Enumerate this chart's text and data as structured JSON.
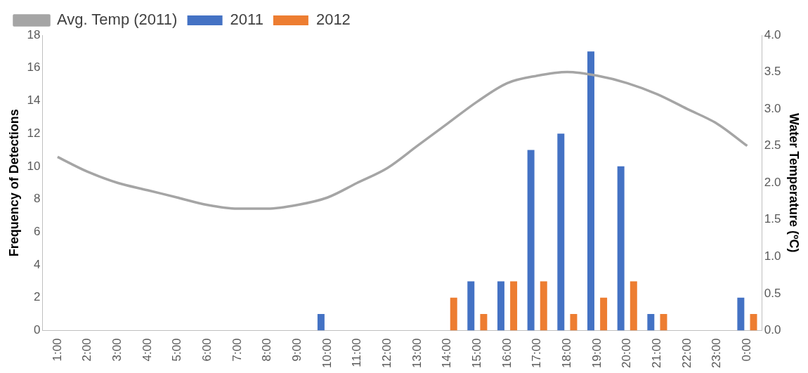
{
  "chart_data": {
    "type": "bar",
    "xlabel": null,
    "ylabel": "Frequency of Detections",
    "y2label": "Water Temperature (ºC)",
    "categories": [
      "1:00",
      "2:00",
      "3:00",
      "4:00",
      "5:00",
      "6:00",
      "7:00",
      "8:00",
      "9:00",
      "10:00",
      "11:00",
      "12:00",
      "13:00",
      "14:00",
      "15:00",
      "16:00",
      "17:00",
      "18:00",
      "19:00",
      "20:00",
      "21:00",
      "22:00",
      "23:00",
      "0:00"
    ],
    "series": [
      {
        "name": "2011",
        "color": "#4472c4",
        "values": [
          0,
          0,
          0,
          0,
          0,
          0,
          0,
          0,
          0,
          1,
          0,
          0,
          0,
          0,
          3,
          3,
          11,
          12,
          17,
          10,
          1,
          0,
          0,
          2
        ]
      },
      {
        "name": "2012",
        "color": "#ed7d31",
        "values": [
          0,
          0,
          0,
          0,
          0,
          0,
          0,
          0,
          0,
          0,
          0,
          0,
          0,
          2,
          1,
          3,
          3,
          1,
          2,
          3,
          1,
          0,
          0,
          1
        ]
      },
      {
        "name": "Avg. Temp (2011)",
        "type": "line",
        "axis": "y2",
        "color": "#a5a5a5",
        "values": [
          2.35,
          2.15,
          2.0,
          1.9,
          1.8,
          1.7,
          1.65,
          1.65,
          1.7,
          1.8,
          2.0,
          2.2,
          2.5,
          2.8,
          3.1,
          3.35,
          3.45,
          3.5,
          3.45,
          3.35,
          3.2,
          3.0,
          2.8,
          2.5
        ]
      }
    ],
    "ylim": [
      0,
      18
    ],
    "yticks": [
      0,
      2,
      4,
      6,
      8,
      10,
      12,
      14,
      16,
      18
    ],
    "y2lim": [
      0,
      4
    ],
    "y2ticks": [
      {
        "value": 0,
        "label": "0.0"
      },
      {
        "value": 0.5,
        "label": "0.5"
      },
      {
        "value": 1,
        "label": "1.0"
      },
      {
        "value": 1.5,
        "label": "1.5"
      },
      {
        "value": 2,
        "label": "2.0"
      },
      {
        "value": 2.5,
        "label": "2.5"
      },
      {
        "value": 3,
        "label": "3.0"
      },
      {
        "value": 3.5,
        "label": "3.5"
      },
      {
        "value": 4,
        "label": "4.0"
      }
    ],
    "grid": false,
    "legend": "top left",
    "marker": "none",
    "line_style": "solid"
  }
}
